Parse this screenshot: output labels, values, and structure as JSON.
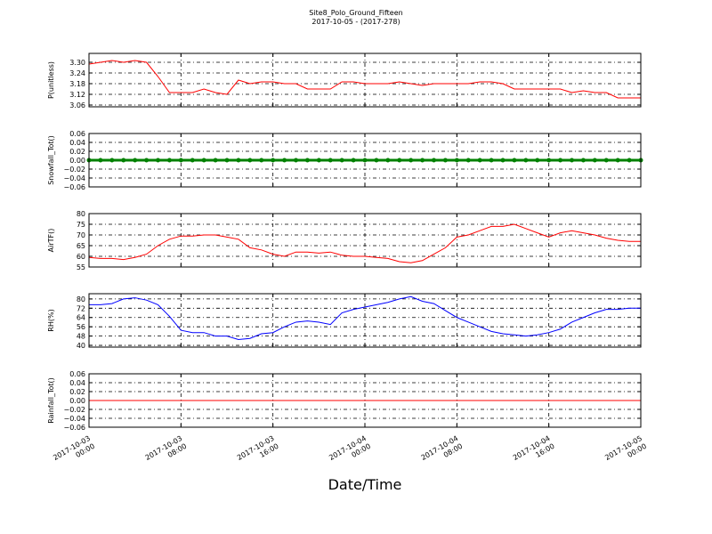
{
  "title": "Site8_Polo_Ground_Fifteen",
  "subtitle": "2017-10-05 - (2017-278)",
  "x_axis": {
    "label": "Date/Time",
    "x": [
      "2017-10-03 00:00",
      "2017-10-03 01:00",
      "2017-10-03 02:00",
      "2017-10-03 03:00",
      "2017-10-03 04:00",
      "2017-10-03 05:00",
      "2017-10-03 06:00",
      "2017-10-03 07:00",
      "2017-10-03 08:00",
      "2017-10-03 09:00",
      "2017-10-03 10:00",
      "2017-10-03 11:00",
      "2017-10-03 12:00",
      "2017-10-03 13:00",
      "2017-10-03 14:00",
      "2017-10-03 15:00",
      "2017-10-03 16:00",
      "2017-10-03 17:00",
      "2017-10-03 18:00",
      "2017-10-03 19:00",
      "2017-10-03 20:00",
      "2017-10-03 21:00",
      "2017-10-03 22:00",
      "2017-10-03 23:00",
      "2017-10-04 00:00",
      "2017-10-04 01:00",
      "2017-10-04 02:00",
      "2017-10-04 03:00",
      "2017-10-04 04:00",
      "2017-10-04 05:00",
      "2017-10-04 06:00",
      "2017-10-04 07:00",
      "2017-10-04 08:00",
      "2017-10-04 09:00",
      "2017-10-04 10:00",
      "2017-10-04 11:00",
      "2017-10-04 12:00",
      "2017-10-04 13:00",
      "2017-10-04 14:00",
      "2017-10-04 15:00",
      "2017-10-04 16:00",
      "2017-10-04 17:00",
      "2017-10-04 18:00",
      "2017-10-04 19:00",
      "2017-10-04 20:00",
      "2017-10-04 21:00",
      "2017-10-04 22:00",
      "2017-10-04 23:00",
      "2017-10-05 00:00"
    ],
    "xlim": [
      "2017-10-03 00:00",
      "2017-10-05 00:00"
    ],
    "xticks": [
      "2017-10-03 00:00",
      "2017-10-03 08:00",
      "2017-10-03 16:00",
      "2017-10-04 00:00",
      "2017-10-04 08:00",
      "2017-10-04 16:00",
      "2017-10-05 00:00"
    ]
  },
  "chart_data": [
    {
      "type": "line",
      "ylabel": "P(unitless)",
      "color": "#ff0000",
      "grid": true,
      "ylim": [
        3.05,
        3.35
      ],
      "yticks": [
        3.06,
        3.12,
        3.18,
        3.24,
        {
          "value": 3.3,
          "label": "3.30"
        }
      ],
      "values": [
        3.29,
        3.3,
        3.31,
        3.3,
        3.31,
        3.3,
        3.22,
        3.13,
        3.13,
        3.13,
        3.15,
        3.13,
        3.12,
        3.2,
        3.18,
        3.19,
        3.19,
        3.18,
        3.18,
        3.15,
        3.15,
        3.15,
        3.19,
        3.19,
        3.18,
        3.18,
        3.18,
        3.19,
        3.18,
        3.17,
        3.18,
        3.18,
        3.18,
        3.18,
        3.19,
        3.19,
        3.18,
        3.15,
        3.15,
        3.15,
        3.15,
        3.15,
        3.13,
        3.14,
        3.13,
        3.13,
        3.1,
        3.1,
        3.1
      ]
    },
    {
      "type": "line",
      "ylabel": "Snowfall_Tot()",
      "color": "#008000",
      "markers": true,
      "grid": true,
      "ylim": [
        -0.06,
        0.06
      ],
      "yticks": [
        {
          "value": -0.06,
          "label": "−0.06"
        },
        {
          "value": -0.04,
          "label": "−0.04"
        },
        {
          "value": -0.02,
          "label": "−0.02"
        },
        {
          "value": 0,
          "label": "0.00"
        },
        0.02,
        0.04,
        0.06
      ],
      "values": [
        0,
        0,
        0,
        0,
        0,
        0,
        0,
        0,
        0,
        0,
        0,
        0,
        0,
        0,
        0,
        0,
        0,
        0,
        0,
        0,
        0,
        0,
        0,
        0,
        0,
        0,
        0,
        0,
        0,
        0,
        0,
        0,
        0,
        0,
        0,
        0,
        0,
        0,
        0,
        0,
        0,
        0,
        0,
        0,
        0,
        0,
        0,
        0,
        0
      ]
    },
    {
      "type": "line",
      "ylabel": "AirTF()",
      "color": "#ff0000",
      "grid": true,
      "ylim": [
        55,
        80
      ],
      "yticks": [
        55,
        60,
        65,
        70,
        75,
        80
      ],
      "values": [
        59.5,
        59,
        59,
        58.5,
        59.5,
        61,
        65,
        68,
        69.5,
        69.5,
        70,
        70,
        69,
        68,
        64,
        63,
        61,
        60,
        62,
        62,
        61.5,
        62,
        60.5,
        60,
        60,
        59.5,
        59,
        57.5,
        57,
        58,
        61,
        64,
        69,
        70,
        72,
        74,
        74,
        75,
        73,
        71,
        69,
        71,
        72,
        71,
        70,
        68.5,
        67.5,
        67,
        67
      ]
    },
    {
      "type": "line",
      "ylabel": "RH(%)",
      "color": "#0000ff",
      "grid": true,
      "ylim": [
        38.5,
        84.5
      ],
      "yticks": [
        40,
        48,
        56,
        64,
        72,
        80
      ],
      "values": [
        75,
        75,
        76,
        80,
        81,
        79,
        75,
        65,
        53,
        51,
        51,
        48,
        48,
        45,
        46,
        50,
        51,
        56,
        60,
        61,
        60,
        58,
        68,
        71,
        73,
        75,
        77,
        80,
        82,
        78,
        76,
        70,
        64,
        60,
        56,
        52,
        50,
        49,
        48,
        49,
        51,
        54,
        60,
        64,
        68,
        71,
        71,
        72,
        72
      ]
    },
    {
      "type": "line",
      "ylabel": "Rainfall_Tot()",
      "color": "#ff0000",
      "grid": true,
      "ylim": [
        -0.06,
        0.06
      ],
      "yticks": [
        {
          "value": -0.06,
          "label": "−0.06"
        },
        {
          "value": -0.04,
          "label": "−0.04"
        },
        {
          "value": -0.02,
          "label": "−0.02"
        },
        {
          "value": 0,
          "label": "0.00"
        },
        0.02,
        0.04,
        0.06
      ],
      "values": [
        0,
        0,
        0,
        0,
        0,
        0,
        0,
        0,
        0,
        0,
        0,
        0,
        0,
        0,
        0,
        0,
        0,
        0,
        0,
        0,
        0,
        0,
        0,
        0,
        0,
        0,
        0,
        0,
        0,
        0,
        0,
        0,
        0,
        0,
        0,
        0,
        0,
        0,
        0,
        0,
        0,
        0,
        0,
        0,
        0,
        0,
        0,
        0,
        0
      ]
    }
  ]
}
